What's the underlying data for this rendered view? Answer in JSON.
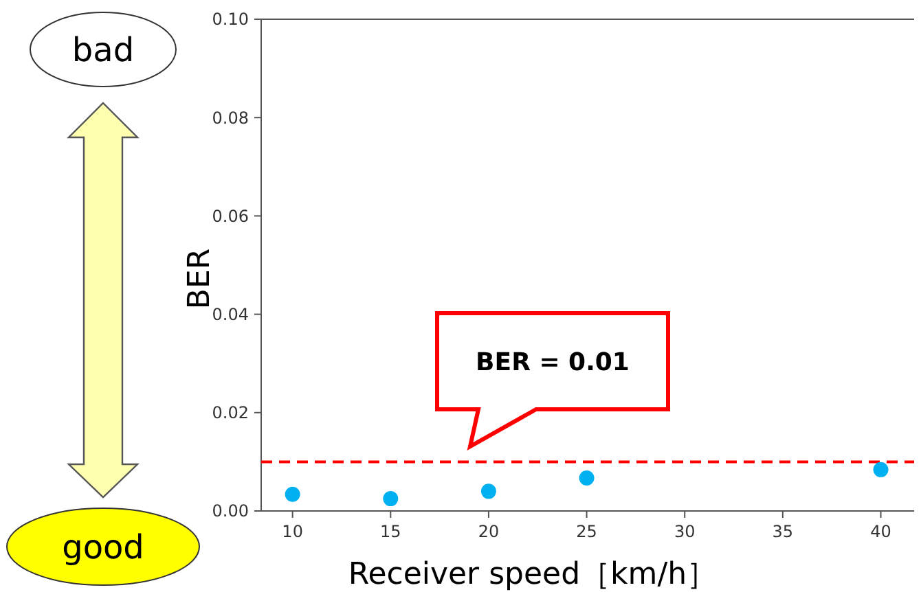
{
  "chart_data": {
    "type": "scatter",
    "xlabel": "Receiver speed［km/h］",
    "ylabel": "BER",
    "x": [
      10,
      15,
      20,
      25,
      40
    ],
    "series": [
      {
        "color": "#00b0f0",
        "values": [
          0.0034,
          0.0025,
          0.004,
          0.0067,
          0.0084
        ]
      }
    ],
    "xlim": [
      8.4,
      41.7
    ],
    "ylim": [
      0,
      0.1
    ],
    "xticks": [
      10,
      15,
      20,
      25,
      30,
      35,
      40
    ],
    "yticks": [
      {
        "value": 0,
        "label": "0.00"
      },
      {
        "value": 0.02,
        "label": "0.02"
      },
      {
        "value": 0.04,
        "label": "0.04"
      },
      {
        "value": 0.06,
        "label": "0.06"
      },
      {
        "value": 0.08,
        "label": "0.08"
      },
      {
        "value": 0.1,
        "label": "0.10"
      }
    ],
    "marker": "circle",
    "grid": false,
    "ref_lines": [
      {
        "axis": "y",
        "value": 0.01,
        "color": "#ff0000",
        "line_style": "dashed"
      }
    ],
    "annotations": [
      "BER = 0.01",
      "bad",
      "good"
    ]
  }
}
